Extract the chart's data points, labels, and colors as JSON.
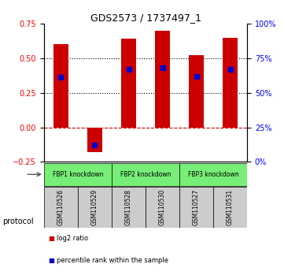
{
  "title": "GDS2573 / 1737497_1",
  "samples": [
    "GSM110526",
    "GSM110529",
    "GSM110528",
    "GSM110530",
    "GSM110527",
    "GSM110531"
  ],
  "log2_ratios": [
    0.6,
    -0.18,
    0.64,
    0.7,
    0.52,
    0.65
  ],
  "percentile_ranks": [
    61,
    12,
    67,
    68,
    62,
    67
  ],
  "ylim_left": [
    -0.25,
    0.75
  ],
  "ylim_right": [
    0,
    100
  ],
  "yticks_left": [
    -0.25,
    0.0,
    0.25,
    0.5,
    0.75
  ],
  "yticks_right": [
    0,
    25,
    50,
    75,
    100
  ],
  "dotted_lines": [
    0.25,
    0.5
  ],
  "zero_line": 0.0,
  "bar_color": "#cc0000",
  "marker_color": "#0000cc",
  "protocol_groups": [
    {
      "label": "FBP1 knockdown",
      "indices": [
        0,
        1
      ],
      "color": "#77ee77"
    },
    {
      "label": "FBP2 knockdown",
      "indices": [
        2,
        3
      ],
      "color": "#77ee77"
    },
    {
      "label": "FBP3 knockdown",
      "indices": [
        4,
        5
      ],
      "color": "#77ee77"
    }
  ],
  "legend_bar_label": "log2 ratio",
  "legend_marker_label": "percentile rank within the sample",
  "protocol_label": "protocol",
  "background_color": "#ffffff",
  "plot_bg_color": "#ffffff",
  "label_area_color": "#cccccc"
}
